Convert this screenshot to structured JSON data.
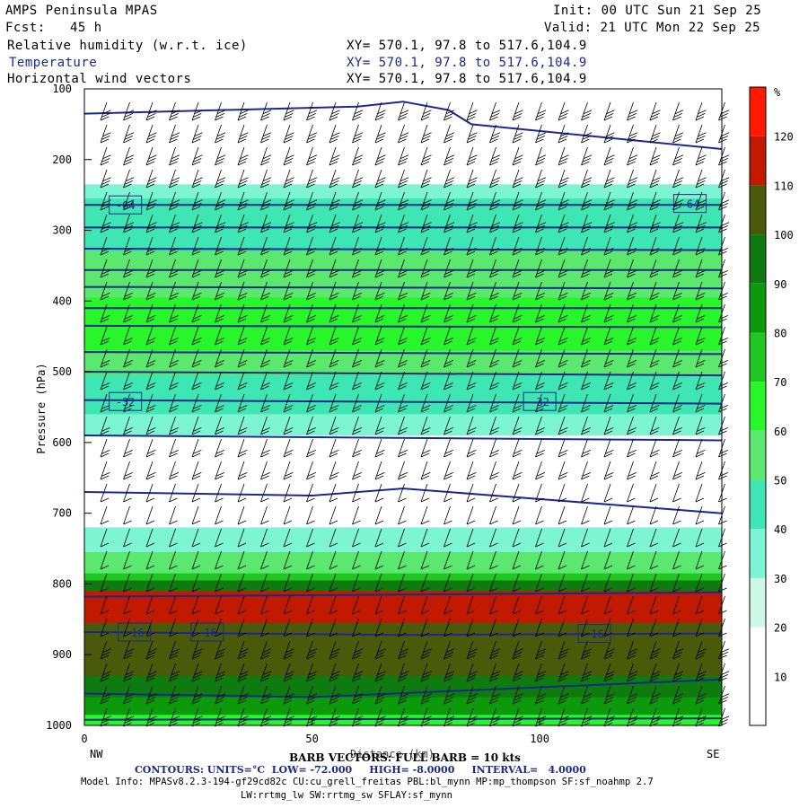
{
  "header": {
    "model": "AMPS Peninsula MPAS",
    "init": "Init: 00 UTC Sun 21 Sep 25",
    "fcst_label": "Fcst:",
    "fcst_value": "45 h",
    "valid": "Valid: 21 UTC Mon 22 Sep 25",
    "field1": "Relative humidity (w.r.t. ice)",
    "field2": "Temperature",
    "field3": "Horizontal wind vectors",
    "xy1": "XY= 570.1, 97.8 to 517.6,104.9",
    "xy2": "XY= 570.1, 97.8 to 517.6,104.9",
    "xy3": "XY= 570.1, 97.8 to 517.6,104.9"
  },
  "footer": {
    "barb_line": "BARB VECTORS: FULL BARB = 10 kts",
    "contours_line": "CONTOURS: UNITS=°C  LOW= -72.000     HIGH= -8.0000     INTERVAL=   4.0000",
    "model_info": "Model Info: MPASv8.2.3-194-gf29cd82c CU:cu_grell_freitas PBL:bl_mynn MP:mp_thompson SF:sf_noahmp 2.7",
    "model_info2": "LW:rrtmg_lw SW:rrtmg_sw SFLAY:sf_mynn",
    "left_end": "NW",
    "right_end": "SE"
  },
  "colors": {
    "temp_contour": "#1a2a8c",
    "rh": [
      "#ffffff",
      "#ffffff",
      "#ffffff",
      "#cdf7e6",
      "#7df5d2",
      "#3ee6b4",
      "#5ce86e",
      "#29f52b",
      "#22c622",
      "#0c9a0c",
      "#0f7a0f",
      "#4a5a0a",
      "#c11a00",
      "#ff1a00"
    ]
  },
  "chart_data": {
    "type": "cross-section",
    "title": "Relative humidity (w.r.t. ice), Temperature, Horizontal wind vectors",
    "xlabel": "Distance (km)",
    "ylabel": "Pressure (hPa)",
    "xlim": [
      0,
      140
    ],
    "ylim": [
      1000,
      100
    ],
    "x_ticks": [
      "0",
      "50",
      "100"
    ],
    "x_tick_values": [
      0,
      50,
      100
    ],
    "y_ticks": [
      "100",
      "200",
      "300",
      "400",
      "500",
      "600",
      "700",
      "800",
      "900",
      "1000"
    ],
    "y_tick_values": [
      100,
      200,
      300,
      400,
      500,
      600,
      700,
      800,
      900,
      1000
    ],
    "colorbar": {
      "unit": "%",
      "labels": [
        "10",
        "20",
        "30",
        "40",
        "50",
        "60",
        "70",
        "80",
        "90",
        "100",
        "110",
        "120"
      ],
      "label_values": [
        10,
        20,
        30,
        40,
        50,
        60,
        70,
        80,
        90,
        100,
        110,
        120
      ]
    },
    "rh_layers": [
      {
        "p_top": 235,
        "p_bot": 265,
        "rh": 35
      },
      {
        "p_top": 255,
        "p_bot": 340,
        "rh": 45
      },
      {
        "p_top": 330,
        "p_bot": 400,
        "rh": 50
      },
      {
        "p_top": 395,
        "p_bot": 475,
        "rh": 62
      },
      {
        "p_top": 470,
        "p_bot": 510,
        "rh": 55
      },
      {
        "p_top": 505,
        "p_bot": 565,
        "rh": 45
      },
      {
        "p_top": 560,
        "p_bot": 590,
        "rh": 35
      },
      {
        "p_top": 720,
        "p_bot": 760,
        "rh": 35
      },
      {
        "p_top": 755,
        "p_bot": 790,
        "rh": 50
      },
      {
        "p_top": 785,
        "p_bot": 800,
        "rh": 75
      },
      {
        "p_top": 795,
        "p_bot": 815,
        "rh": 95
      },
      {
        "p_top": 810,
        "p_bot": 860,
        "rh": 118
      },
      {
        "p_top": 855,
        "p_bot": 935,
        "rh": 105
      },
      {
        "p_top": 930,
        "p_bot": 965,
        "rh": 95
      },
      {
        "p_top": 960,
        "p_bot": 990,
        "rh": 80
      },
      {
        "p_top": 985,
        "p_bot": 1000,
        "rh": 65
      }
    ],
    "temperature_isotherms": [
      {
        "x": [
          0,
          60,
          70,
          80,
          85,
          140
        ],
        "p": [
          135,
          125,
          118,
          130,
          150,
          185
        ]
      },
      {
        "x": [
          0,
          140
        ],
        "p": [
          264,
          264
        ]
      },
      {
        "x": [
          0,
          140
        ],
        "p": [
          296,
          296
        ]
      },
      {
        "x": [
          0,
          140
        ],
        "p": [
          326,
          328
        ]
      },
      {
        "x": [
          0,
          140
        ],
        "p": [
          356,
          356
        ]
      },
      {
        "x": [
          0,
          140
        ],
        "p": [
          380,
          382
        ]
      },
      {
        "x": [
          0,
          140
        ],
        "p": [
          410,
          410
        ]
      },
      {
        "x": [
          0,
          140
        ],
        "p": [
          435,
          437
        ]
      },
      {
        "x": [
          0,
          140
        ],
        "p": [
          472,
          475
        ]
      },
      {
        "x": [
          0,
          140
        ],
        "p": [
          500,
          505
        ]
      },
      {
        "x": [
          0,
          140
        ],
        "p": [
          540,
          545
        ]
      },
      {
        "x": [
          0,
          140
        ],
        "p": [
          590,
          597
        ]
      },
      {
        "x": [
          0,
          50,
          70,
          140
        ],
        "p": [
          670,
          675,
          665,
          700
        ]
      },
      {
        "x": [
          0,
          140
        ],
        "p": [
          818,
          812
        ]
      },
      {
        "x": [
          0,
          70,
          140
        ],
        "p": [
          868,
          872,
          870
        ]
      },
      {
        "x": [
          0,
          50,
          140
        ],
        "p": [
          955,
          960,
          935
        ]
      },
      {
        "x": [
          0,
          140
        ],
        "p": [
          992,
          990
        ]
      }
    ],
    "isotherm_labels": [
      {
        "text": "-64",
        "x": 9,
        "p": 264
      },
      {
        "text": "-64",
        "x": 133,
        "p": 262
      },
      {
        "text": "-32",
        "x": 9,
        "p": 542
      },
      {
        "text": "-32",
        "x": 100,
        "p": 542
      },
      {
        "text": "-16",
        "x": 11,
        "p": 868
      },
      {
        "text": "-16",
        "x": 27,
        "p": 868
      },
      {
        "text": "-16",
        "x": 112,
        "p": 870
      }
    ]
  }
}
